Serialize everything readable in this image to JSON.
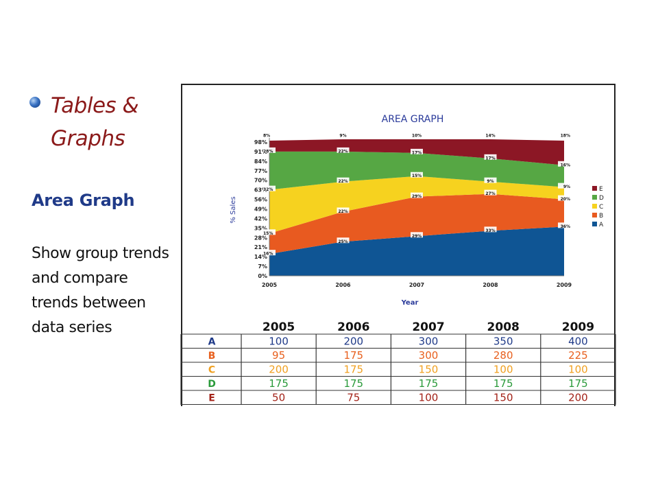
{
  "slide": {
    "heading": "Tables & Graphs",
    "subheading": "Area Graph",
    "body": "Show group trends and compare trends between data series"
  },
  "colors": {
    "A": "#0f5594",
    "B": "#e85a20",
    "C": "#f6d21f",
    "D": "#56a744",
    "E": "#8c1725",
    "table_A": "#1f3a88",
    "table_B": "#e8601e",
    "table_C": "#f0a020",
    "table_D": "#2a9a3a",
    "table_E": "#a32218"
  },
  "chart_data": {
    "type": "area",
    "title": "AREA GRAPH",
    "xlabel": "Year",
    "ylabel": "% Sales",
    "x": [
      "2005",
      "2006",
      "2007",
      "2008",
      "2009"
    ],
    "y_ticks": [
      "0%",
      "7%",
      "14%",
      "21%",
      "28%",
      "35%",
      "42%",
      "49%",
      "56%",
      "63%",
      "70%",
      "77%",
      "84%",
      "91%",
      "98%"
    ],
    "ylim": [
      0,
      100
    ],
    "stacked": true,
    "legend_position": "right",
    "series": [
      {
        "name": "A",
        "values": [
          16,
          25,
          29,
          33,
          36
        ],
        "labels": [
          "16%",
          "25%",
          "29%",
          "33%",
          "36%"
        ]
      },
      {
        "name": "B",
        "values": [
          15,
          22,
          29,
          27,
          20
        ],
        "labels": [
          "15%",
          "22%",
          "29%",
          "27%",
          "20%"
        ]
      },
      {
        "name": "C",
        "values": [
          32,
          22,
          15,
          9,
          9
        ],
        "labels": [
          "32%",
          "22%",
          "15%",
          "9%",
          "9%"
        ]
      },
      {
        "name": "D",
        "values": [
          28,
          22,
          17,
          17,
          16
        ],
        "labels": [
          "28%",
          "22%",
          "17%",
          "17%",
          "16%"
        ]
      },
      {
        "name": "E",
        "values": [
          8,
          9,
          10,
          14,
          18
        ],
        "labels": [
          "8%",
          "9%",
          "10%",
          "14%",
          "18%"
        ]
      }
    ],
    "legend_order": [
      "E",
      "D",
      "C",
      "B",
      "A"
    ]
  },
  "table": {
    "headers": [
      "2005",
      "2006",
      "2007",
      "2008",
      "2009"
    ],
    "rows": [
      {
        "label": "A",
        "values": [
          "100",
          "200",
          "300",
          "350",
          "400"
        ]
      },
      {
        "label": "B",
        "values": [
          "95",
          "175",
          "300",
          "280",
          "225"
        ]
      },
      {
        "label": "C",
        "values": [
          "200",
          "175",
          "150",
          "100",
          "100"
        ]
      },
      {
        "label": "D",
        "values": [
          "175",
          "175",
          "175",
          "175",
          "175"
        ]
      },
      {
        "label": "E",
        "values": [
          "50",
          "75",
          "100",
          "150",
          "200"
        ]
      }
    ]
  }
}
